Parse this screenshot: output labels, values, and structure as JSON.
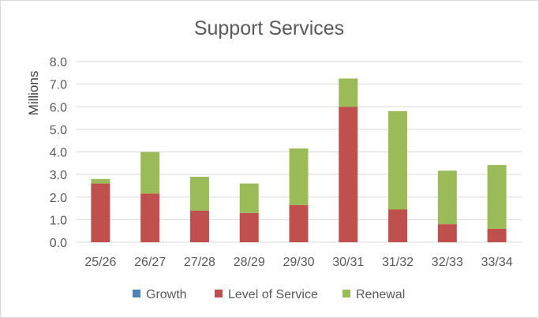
{
  "chart_data": {
    "type": "bar",
    "stacked": true,
    "title": "Support Services",
    "ylabel": "Millions",
    "xlabel": "",
    "categories": [
      "25/26",
      "26/27",
      "27/28",
      "28/29",
      "29/30",
      "30/31",
      "31/32",
      "32/33",
      "33/34"
    ],
    "series": [
      {
        "name": "Growth",
        "color": "#4F81BD",
        "values": [
          0,
          0,
          0,
          0,
          0,
          0,
          0,
          0,
          0
        ]
      },
      {
        "name": "Level of Service",
        "color": "#C0504D",
        "values": [
          2.6,
          2.15,
          1.4,
          1.3,
          1.65,
          6.0,
          1.45,
          0.8,
          0.6
        ]
      },
      {
        "name": "Renewal",
        "color": "#9BBB59",
        "values": [
          0.2,
          1.85,
          1.5,
          1.3,
          2.5,
          1.25,
          4.35,
          2.37,
          2.82
        ]
      }
    ],
    "ylim": [
      0,
      8
    ],
    "yticks": [
      "0.0",
      "1.0",
      "2.0",
      "3.0",
      "4.0",
      "5.0",
      "6.0",
      "7.0",
      "8.0"
    ],
    "grid": true,
    "legend_position": "bottom"
  }
}
